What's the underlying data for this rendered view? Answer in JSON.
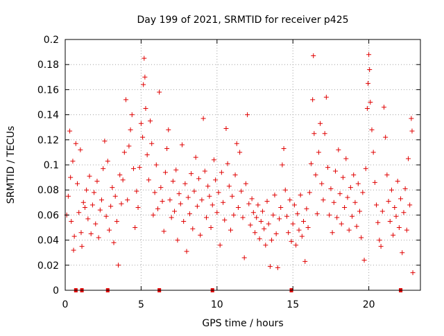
{
  "chart_data": {
    "type": "scatter",
    "title": "Day 199 of 2021, SRMTID for receiver p425",
    "xlabel": "GPS time / hours",
    "ylabel": "SRMTID / TECUs",
    "xlim": [
      0,
      23.4
    ],
    "ylim": [
      0,
      0.2
    ],
    "xticks": [
      0,
      5,
      10,
      15,
      20
    ],
    "xtick_labels": [
      "0",
      "5",
      "10",
      "15",
      "20"
    ],
    "yticks": [
      0,
      0.02,
      0.04,
      0.06,
      0.08,
      0.1,
      0.12,
      0.14,
      0.16,
      0.18,
      0.2
    ],
    "ytick_labels": [
      "0",
      "0.02",
      "0.04",
      "0.06",
      "0.08",
      "0.1",
      "0.12",
      "0.14",
      "0.16",
      "0.18",
      "0.2"
    ],
    "grid": true,
    "marker": "+",
    "color": "#e00000",
    "zero_markers_x": [
      0.7,
      1.1,
      2.8,
      6.2,
      9.7,
      14.9,
      22.1
    ],
    "series": [
      {
        "name": "SRMTID",
        "points": [
          [
            0.1,
            0.06
          ],
          [
            0.2,
            0.075
          ],
          [
            0.3,
            0.127
          ],
          [
            0.35,
            0.09
          ],
          [
            0.4,
            0.055
          ],
          [
            0.5,
            0.103
          ],
          [
            0.55,
            0.032
          ],
          [
            0.6,
            0.043
          ],
          [
            0.7,
            0.117
          ],
          [
            0.8,
            0.085
          ],
          [
            0.9,
            0.062
          ],
          [
            1.0,
            0.112
          ],
          [
            1.05,
            0.046
          ],
          [
            1.1,
            0.035
          ],
          [
            1.2,
            0.07
          ],
          [
            1.3,
            0.066
          ],
          [
            1.4,
            0.08
          ],
          [
            1.5,
            0.057
          ],
          [
            1.6,
            0.091
          ],
          [
            1.7,
            0.045
          ],
          [
            1.8,
            0.068
          ],
          [
            1.9,
            0.078
          ],
          [
            2.0,
            0.053
          ],
          [
            2.1,
            0.087
          ],
          [
            2.2,
            0.042
          ],
          [
            2.3,
            0.064
          ],
          [
            2.4,
            0.072
          ],
          [
            2.5,
            0.097
          ],
          [
            2.6,
            0.119
          ],
          [
            2.7,
            0.059
          ],
          [
            2.8,
            0.103
          ],
          [
            2.9,
            0.048
          ],
          [
            3.0,
            0.067
          ],
          [
            3.1,
            0.082
          ],
          [
            3.2,
            0.038
          ],
          [
            3.3,
            0.075
          ],
          [
            3.4,
            0.055
          ],
          [
            3.5,
            0.02
          ],
          [
            3.6,
            0.092
          ],
          [
            3.7,
            0.069
          ],
          [
            3.8,
            0.088
          ],
          [
            3.9,
            0.11
          ],
          [
            4.0,
            0.152
          ],
          [
            4.1,
            0.072
          ],
          [
            4.2,
            0.115
          ],
          [
            4.3,
            0.128
          ],
          [
            4.4,
            0.14
          ],
          [
            4.5,
            0.097
          ],
          [
            4.6,
            0.05
          ],
          [
            4.7,
            0.079
          ],
          [
            4.8,
            0.066
          ],
          [
            4.9,
            0.098
          ],
          [
            5.0,
            0.133
          ],
          [
            5.1,
            0.122
          ],
          [
            5.15,
            0.164
          ],
          [
            5.2,
            0.185
          ],
          [
            5.25,
            0.17
          ],
          [
            5.3,
            0.145
          ],
          [
            5.4,
            0.108
          ],
          [
            5.5,
            0.088
          ],
          [
            5.6,
            0.135
          ],
          [
            5.7,
            0.117
          ],
          [
            5.8,
            0.06
          ],
          [
            5.9,
            0.078
          ],
          [
            6.0,
            0.1
          ],
          [
            6.1,
            0.065
          ],
          [
            6.2,
            0.158
          ],
          [
            6.3,
            0.082
          ],
          [
            6.4,
            0.071
          ],
          [
            6.5,
            0.047
          ],
          [
            6.6,
            0.094
          ],
          [
            6.7,
            0.113
          ],
          [
            6.8,
            0.128
          ],
          [
            6.9,
            0.072
          ],
          [
            7.0,
            0.058
          ],
          [
            7.1,
            0.087
          ],
          [
            7.2,
            0.063
          ],
          [
            7.3,
            0.096
          ],
          [
            7.4,
            0.04
          ],
          [
            7.5,
            0.077
          ],
          [
            7.6,
            0.069
          ],
          [
            7.7,
            0.116
          ],
          [
            7.8,
            0.055
          ],
          [
            7.9,
            0.085
          ],
          [
            8.0,
            0.031
          ],
          [
            8.1,
            0.074
          ],
          [
            8.2,
            0.061
          ],
          [
            8.3,
            0.093
          ],
          [
            8.4,
            0.049
          ],
          [
            8.5,
            0.079
          ],
          [
            8.6,
            0.106
          ],
          [
            8.7,
            0.067
          ],
          [
            8.8,
            0.089
          ],
          [
            8.9,
            0.044
          ],
          [
            9.0,
            0.072
          ],
          [
            9.1,
            0.137
          ],
          [
            9.2,
            0.095
          ],
          [
            9.3,
            0.058
          ],
          [
            9.4,
            0.083
          ],
          [
            9.5,
            0.075
          ],
          [
            9.6,
            0.05
          ],
          [
            9.7,
            0.068
          ],
          [
            9.8,
            0.104
          ],
          [
            9.9,
            0.088
          ],
          [
            10.0,
            0.062
          ],
          [
            10.1,
            0.078
          ],
          [
            10.2,
            0.036
          ],
          [
            10.3,
            0.094
          ],
          [
            10.4,
            0.07
          ],
          [
            10.5,
            0.056
          ],
          [
            10.6,
            0.129
          ],
          [
            10.7,
            0.101
          ],
          [
            10.8,
            0.083
          ],
          [
            10.9,
            0.048
          ],
          [
            11.0,
            0.075
          ],
          [
            11.1,
            0.06
          ],
          [
            11.2,
            0.092
          ],
          [
            11.3,
            0.117
          ],
          [
            11.4,
            0.066
          ],
          [
            11.5,
            0.11
          ],
          [
            11.6,
            0.079
          ],
          [
            11.7,
            0.058
          ],
          [
            11.8,
            0.026
          ],
          [
            11.9,
            0.085
          ],
          [
            12.0,
            0.14
          ],
          [
            12.1,
            0.069
          ],
          [
            12.2,
            0.052
          ],
          [
            12.3,
            0.073
          ],
          [
            12.4,
            0.062
          ],
          [
            12.5,
            0.046
          ],
          [
            12.6,
            0.058
          ],
          [
            12.7,
            0.068
          ],
          [
            12.8,
            0.041
          ],
          [
            12.9,
            0.055
          ],
          [
            13.0,
            0.063
          ],
          [
            13.1,
            0.049
          ],
          [
            13.2,
            0.036
          ],
          [
            13.3,
            0.071
          ],
          [
            13.4,
            0.053
          ],
          [
            13.5,
            0.019
          ],
          [
            13.6,
            0.04
          ],
          [
            13.7,
            0.06
          ],
          [
            13.8,
            0.076
          ],
          [
            13.9,
            0.045
          ],
          [
            14.0,
            0.018
          ],
          [
            14.1,
            0.057
          ],
          [
            14.2,
            0.066
          ],
          [
            14.3,
            0.1
          ],
          [
            14.4,
            0.113
          ],
          [
            14.5,
            0.08
          ],
          [
            14.6,
            0.059
          ],
          [
            14.7,
            0.046
          ],
          [
            14.8,
            0.072
          ],
          [
            14.9,
            0.039
          ],
          [
            15.0,
            0.053
          ],
          [
            15.1,
            0.068
          ],
          [
            15.2,
            0.036
          ],
          [
            15.3,
            0.061
          ],
          [
            15.4,
            0.048
          ],
          [
            15.5,
            0.076
          ],
          [
            15.6,
            0.043
          ],
          [
            15.7,
            0.055
          ],
          [
            15.8,
            0.023
          ],
          [
            15.9,
            0.065
          ],
          [
            16.0,
            0.05
          ],
          [
            16.1,
            0.078
          ],
          [
            16.2,
            0.101
          ],
          [
            16.3,
            0.152
          ],
          [
            16.35,
            0.187
          ],
          [
            16.4,
            0.125
          ],
          [
            16.5,
            0.092
          ],
          [
            16.6,
            0.061
          ],
          [
            16.7,
            0.11
          ],
          [
            16.8,
            0.133
          ],
          [
            16.9,
            0.085
          ],
          [
            17.0,
            0.072
          ],
          [
            17.1,
            0.125
          ],
          [
            17.2,
            0.154
          ],
          [
            17.3,
            0.098
          ],
          [
            17.4,
            0.06
          ],
          [
            17.5,
            0.081
          ],
          [
            17.6,
            0.046
          ],
          [
            17.7,
            0.07
          ],
          [
            17.8,
            0.095
          ],
          [
            17.9,
            0.058
          ],
          [
            18.0,
            0.112
          ],
          [
            18.1,
            0.077
          ],
          [
            18.2,
            0.053
          ],
          [
            18.3,
            0.09
          ],
          [
            18.4,
            0.066
          ],
          [
            18.5,
            0.105
          ],
          [
            18.6,
            0.074
          ],
          [
            18.7,
            0.048
          ],
          [
            18.8,
            0.082
          ],
          [
            18.9,
            0.059
          ],
          [
            19.0,
            0.092
          ],
          [
            19.1,
            0.07
          ],
          [
            19.2,
            0.051
          ],
          [
            19.3,
            0.085
          ],
          [
            19.4,
            0.063
          ],
          [
            19.5,
            0.042
          ],
          [
            19.6,
            0.078
          ],
          [
            19.7,
            0.024
          ],
          [
            19.8,
            0.097
          ],
          [
            19.9,
            0.145
          ],
          [
            19.95,
            0.165
          ],
          [
            20.0,
            0.188
          ],
          [
            20.05,
            0.176
          ],
          [
            20.1,
            0.15
          ],
          [
            20.2,
            0.128
          ],
          [
            20.3,
            0.11
          ],
          [
            20.4,
            0.086
          ],
          [
            20.5,
            0.068
          ],
          [
            20.6,
            0.054
          ],
          [
            20.7,
            0.04
          ],
          [
            20.8,
            0.035
          ],
          [
            20.9,
            0.063
          ],
          [
            21.0,
            0.146
          ],
          [
            21.1,
            0.122
          ],
          [
            21.2,
            0.092
          ],
          [
            21.3,
            0.071
          ],
          [
            21.4,
            0.055
          ],
          [
            21.5,
            0.08
          ],
          [
            21.6,
            0.044
          ],
          [
            21.7,
            0.066
          ],
          [
            21.8,
            0.059
          ],
          [
            21.9,
            0.087
          ],
          [
            22.0,
            0.05
          ],
          [
            22.1,
            0.073
          ],
          [
            22.2,
            0.03
          ],
          [
            22.3,
            0.062
          ],
          [
            22.4,
            0.081
          ],
          [
            22.5,
            0.048
          ],
          [
            22.6,
            0.105
          ],
          [
            22.7,
            0.068
          ],
          [
            22.8,
            0.137
          ],
          [
            22.85,
            0.127
          ],
          [
            22.9,
            0.014
          ]
        ]
      }
    ]
  }
}
